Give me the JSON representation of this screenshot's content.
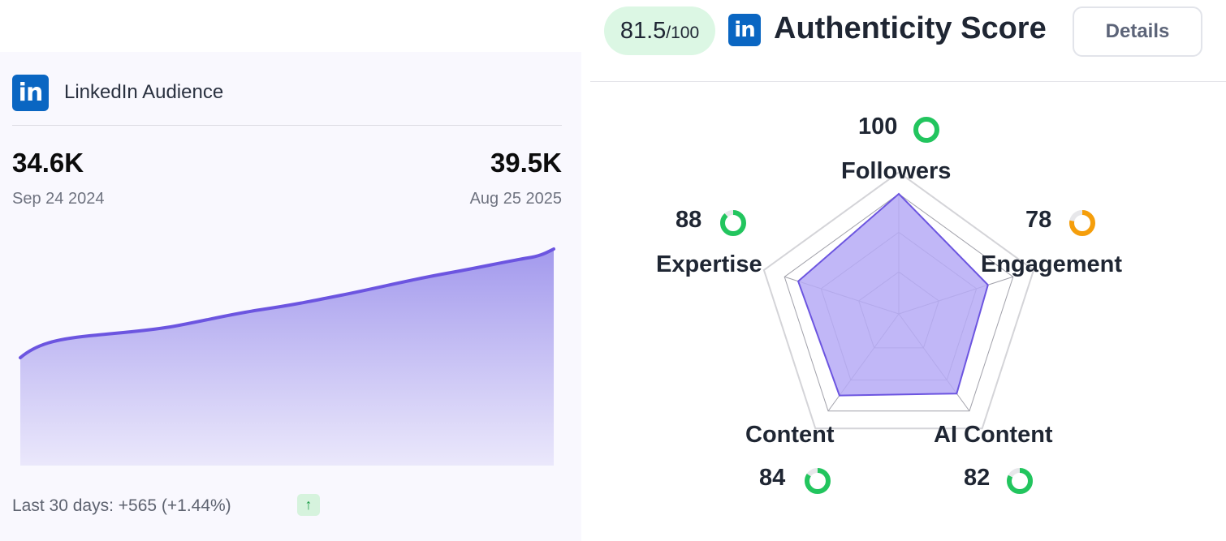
{
  "audience": {
    "title": "LinkedIn Audience",
    "logo_text": "in",
    "start_value": "34.6K",
    "start_date": "Sep 24 2024",
    "end_value": "39.5K",
    "end_date": "Aug 25 2025",
    "last_30_days": "Last 30 days: +565 (+1.44%)",
    "trend_icon": "arrow-up-icon",
    "trend_symbol": "↑"
  },
  "authenticity": {
    "score": "81.5",
    "max": "/100",
    "title": "Authenticity Score",
    "logo_text": "in",
    "details_label": "Details",
    "metrics": [
      {
        "name": "Followers",
        "value": "100",
        "score": 100,
        "color": "#22c55e"
      },
      {
        "name": "Engagement",
        "value": "78",
        "score": 78,
        "color": "#f59e0b"
      },
      {
        "name": "AI Content",
        "value": "82",
        "score": 82,
        "color": "#22c55e"
      },
      {
        "name": "Content",
        "value": "84",
        "score": 84,
        "color": "#22c55e"
      },
      {
        "name": "Expertise",
        "value": "88",
        "score": 88,
        "color": "#22c55e"
      }
    ]
  },
  "chart_data": [
    {
      "type": "area",
      "x": [
        "Sep 24 2024",
        "Aug 25 2025"
      ],
      "y": [
        34.6,
        39.5
      ],
      "y_unit": "K"
    },
    {
      "type": "radar",
      "categories": [
        "Followers",
        "Engagement",
        "AI Content",
        "Content",
        "Expertise"
      ],
      "values": [
        100,
        78,
        82,
        84,
        88
      ],
      "range": [
        0,
        100
      ]
    }
  ],
  "colors": {
    "accent": "#6c55e0",
    "area_fill": "#a99ef0",
    "radar_fill": "#b6aaf6",
    "green": "#22c55e",
    "orange": "#f59e0b"
  }
}
